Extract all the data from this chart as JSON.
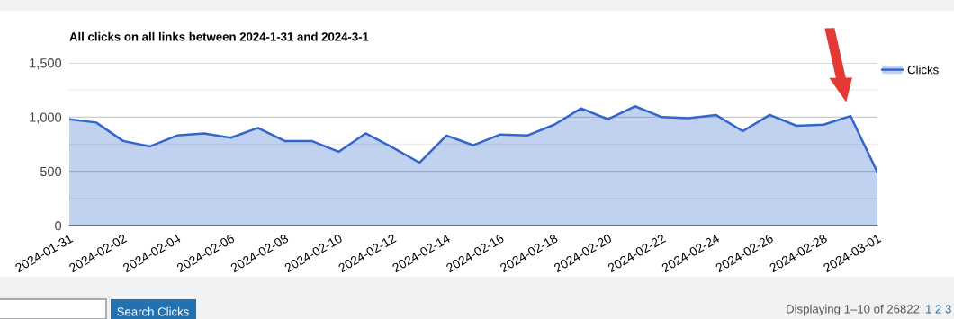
{
  "chart_data": {
    "type": "area",
    "title": "All clicks on all links between 2024-1-31 and 2024-3-1",
    "categories": [
      "2024-01-31",
      null,
      "2024-02-02",
      null,
      "2024-02-04",
      null,
      "2024-02-06",
      null,
      "2024-02-08",
      null,
      "2024-02-10",
      null,
      "2024-02-12",
      null,
      "2024-02-14",
      null,
      "2024-02-16",
      null,
      "2024-02-18",
      null,
      "2024-02-20",
      null,
      "2024-02-22",
      null,
      "2024-02-24",
      null,
      "2024-02-26",
      null,
      "2024-02-28",
      null,
      "2024-03-01"
    ],
    "series": [
      {
        "name": "Clicks",
        "color": "#3366cc",
        "values": [
          980,
          950,
          780,
          730,
          830,
          850,
          810,
          900,
          780,
          780,
          680,
          850,
          720,
          580,
          830,
          740,
          840,
          830,
          930,
          1080,
          980,
          1100,
          1000,
          990,
          1020,
          870,
          1020,
          920,
          930,
          1010,
          490
        ]
      }
    ],
    "ylim": [
      0,
      1500
    ],
    "yticks": [
      0,
      {
        "value": 250,
        "label": null
      },
      500,
      {
        "value": 750,
        "label": null
      },
      {
        "value": 1000,
        "label": "1,000"
      },
      {
        "value": 1250,
        "label": null
      },
      {
        "value": 1500,
        "label": "1,500"
      }
    ],
    "grid": "y",
    "legend": "right",
    "annotations": [
      "Search Clicks",
      "Displaying 1–10 of 26822",
      "1 2 3"
    ]
  }
}
